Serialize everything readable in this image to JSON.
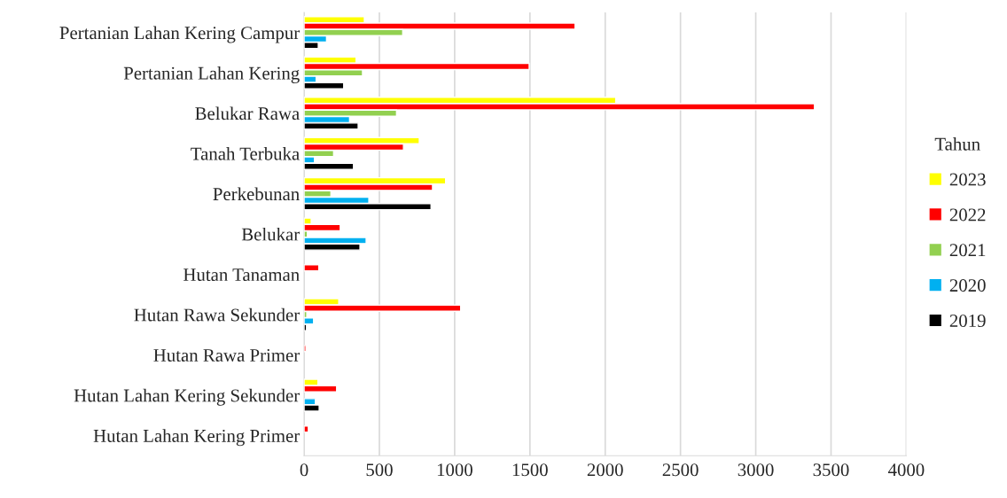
{
  "chart_data": {
    "type": "bar",
    "orientation": "horizontal",
    "categories": [
      "Pertanian Lahan Kering Campur",
      "Pertanian Lahan Kering",
      "Belukar Rawa",
      "Tanah Terbuka",
      "Perkebunan",
      "Belukar",
      "Hutan Tanaman",
      "Hutan Rawa Sekunder",
      "Hutan Rawa Primer",
      "Hutan Lahan Kering Sekunder",
      "Hutan Lahan Kering Primer"
    ],
    "series": [
      {
        "name": "2023",
        "color": "#ffff00",
        "values": [
          400,
          345,
          2070,
          765,
          940,
          47,
          null,
          230,
          null,
          92,
          null
        ]
      },
      {
        "name": "2022",
        "color": "#ff0000",
        "values": [
          1800,
          1495,
          3390,
          660,
          853,
          240,
          98,
          1040,
          12,
          216,
          28
        ]
      },
      {
        "name": "2021",
        "color": "#92d050",
        "values": [
          655,
          388,
          614,
          196,
          178,
          22,
          null,
          18,
          null,
          null,
          null
        ]
      },
      {
        "name": "2020",
        "color": "#00b0f0",
        "values": [
          149,
          80,
          302,
          69,
          430,
          412,
          null,
          63,
          null,
          75,
          null
        ]
      },
      {
        "name": "2019",
        "color": "#000000",
        "values": [
          94,
          263,
          359,
          328,
          843,
          371,
          null,
          16,
          null,
          100,
          null
        ]
      }
    ],
    "legend_title": "Tahun",
    "xlim": [
      0,
      4000
    ],
    "xticks": [
      0,
      500,
      1000,
      1500,
      2000,
      2500,
      3000,
      3500,
      4000
    ],
    "grid": "x",
    "legend": "right"
  }
}
